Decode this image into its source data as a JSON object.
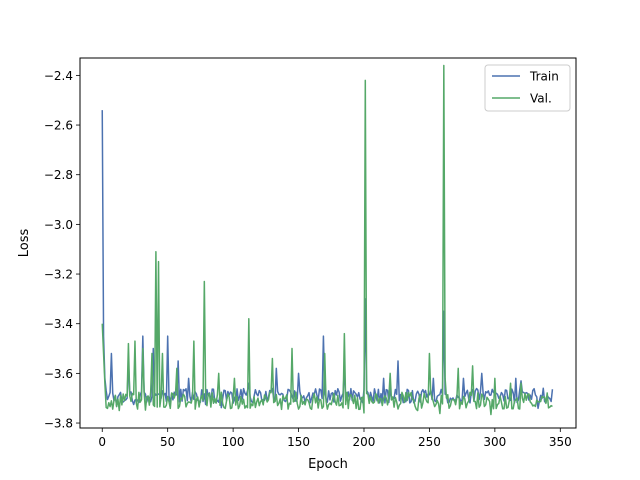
{
  "chart_data": {
    "type": "line",
    "title": "",
    "xlabel": "Epoch",
    "ylabel": "Loss",
    "xlim": [
      -17,
      362
    ],
    "ylim": [
      -3.82,
      -2.33
    ],
    "xticks": [
      0,
      50,
      100,
      150,
      200,
      250,
      300,
      350
    ],
    "yticks": [
      -3.8,
      -3.6,
      -3.4,
      -3.2,
      -3.0,
      -2.8,
      -2.6,
      -2.4
    ],
    "ytick_labels": [
      "−3.8",
      "−3.6",
      "−3.4",
      "−3.2",
      "−3.0",
      "−2.8",
      "−2.6",
      "−2.4"
    ],
    "grid": false,
    "legend_position": "top-right",
    "n_epochs": 345,
    "series": [
      {
        "name": "Train",
        "color": "#4c72b0",
        "baseline": -3.69,
        "noise": 0.03,
        "spikes": [
          [
            0,
            -2.54
          ],
          [
            1,
            -3.45
          ],
          [
            2,
            -3.62
          ],
          [
            3,
            -3.67
          ],
          [
            7,
            -3.52
          ],
          [
            20,
            -3.55
          ],
          [
            31,
            -3.45
          ],
          [
            39,
            -3.5
          ],
          [
            50,
            -3.45
          ],
          [
            58,
            -3.55
          ],
          [
            66,
            -3.62
          ],
          [
            112,
            -3.64
          ],
          [
            133,
            -3.58
          ],
          [
            150,
            -3.6
          ],
          [
            169,
            -3.45
          ],
          [
            185,
            -3.58
          ],
          [
            201,
            -3.3
          ],
          [
            215,
            -3.62
          ],
          [
            226,
            -3.55
          ],
          [
            253,
            -3.62
          ],
          [
            261,
            -3.35
          ],
          [
            276,
            -3.62
          ],
          [
            290,
            -3.6
          ],
          [
            316,
            -3.62
          ],
          [
            320,
            -3.63
          ],
          [
            337,
            -3.66
          ]
        ]
      },
      {
        "name": "Val.",
        "color": "#55a868",
        "baseline": -3.71,
        "noise": 0.035,
        "spikes": [
          [
            0,
            -3.4
          ],
          [
            1,
            -3.52
          ],
          [
            2,
            -3.64
          ],
          [
            20,
            -3.48
          ],
          [
            25,
            -3.47
          ],
          [
            31,
            -3.5
          ],
          [
            38,
            -3.52
          ],
          [
            41,
            -3.11
          ],
          [
            43,
            -3.15
          ],
          [
            46,
            -3.52
          ],
          [
            57,
            -3.58
          ],
          [
            70,
            -3.47
          ],
          [
            78,
            -3.23
          ],
          [
            89,
            -3.6
          ],
          [
            101,
            -3.62
          ],
          [
            112,
            -3.38
          ],
          [
            130,
            -3.54
          ],
          [
            145,
            -3.5
          ],
          [
            170,
            -3.52
          ],
          [
            185,
            -3.44
          ],
          [
            201,
            -2.42
          ],
          [
            220,
            -3.6
          ],
          [
            250,
            -3.52
          ],
          [
            261,
            -2.36
          ],
          [
            262,
            -3.62
          ],
          [
            272,
            -3.58
          ],
          [
            283,
            -3.57
          ],
          [
            300,
            -3.62
          ],
          [
            312,
            -3.64
          ],
          [
            320,
            -3.64
          ]
        ]
      }
    ]
  }
}
